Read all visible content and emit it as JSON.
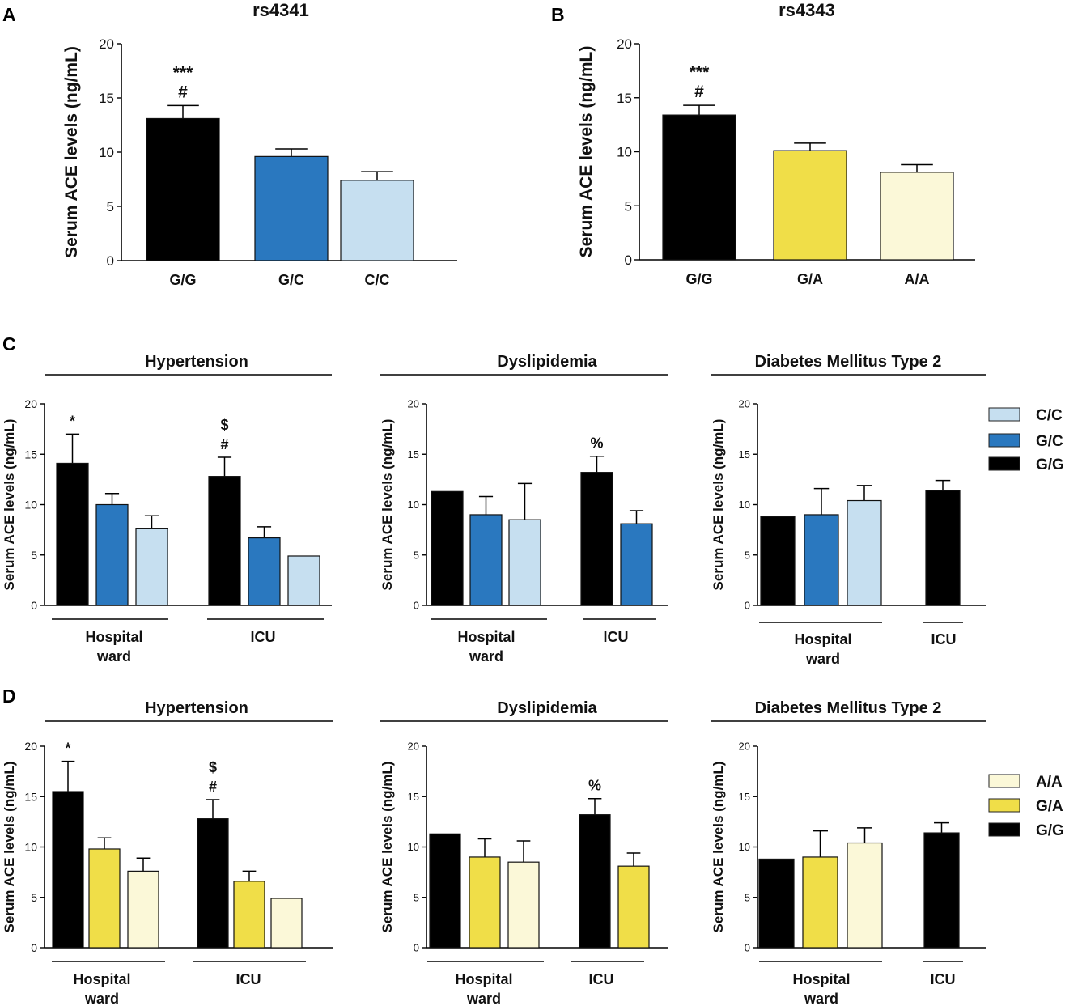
{
  "panel_letters": {
    "a": "A",
    "b": "B",
    "c": "C",
    "d": "D"
  },
  "condition_titles": {
    "hypertension": "Hypertension",
    "dyslipidemia": "Dyslipidemia",
    "diabetes": "Diabetes Mellitus Type 2"
  },
  "group_labels": {
    "hospital_line1": "Hospital",
    "hospital_line2": "ward",
    "icu": "ICU"
  },
  "colors": {
    "G/G": "#000000",
    "G/C": "#2a78bf",
    "C/C": "#c6dff0",
    "G/A": "#f0de48",
    "A/A": "#fbf8d8"
  },
  "legend_c": [
    "C/C",
    "G/C",
    "G/G"
  ],
  "legend_d": [
    "A/A",
    "G/A",
    "G/G"
  ],
  "chart_data": [
    {
      "id": "A",
      "type": "bar",
      "title": "rs4341",
      "ylabel": "Serum ACE levels (ng/mL)",
      "ylim": [
        0,
        20
      ],
      "yticks": [
        0,
        5,
        10,
        15,
        20
      ],
      "categories": [
        "G/G",
        "G/C",
        "C/C"
      ],
      "values": [
        13.1,
        9.6,
        7.4
      ],
      "errors": [
        1.2,
        0.7,
        0.8
      ],
      "annotations": [
        {
          "bar": 0,
          "lines": [
            "***",
            "#"
          ]
        }
      ]
    },
    {
      "id": "B",
      "type": "bar",
      "title": "rs4343",
      "ylabel": "Serum ACE levels (ng/mL)",
      "ylim": [
        0,
        20
      ],
      "yticks": [
        0,
        5,
        10,
        15,
        20
      ],
      "categories": [
        "G/G",
        "G/A",
        "A/A"
      ],
      "values": [
        13.4,
        10.1,
        8.1
      ],
      "errors": [
        0.9,
        0.7,
        0.7
      ],
      "annotations": [
        {
          "bar": 0,
          "lines": [
            "***",
            "#"
          ]
        }
      ]
    },
    {
      "id": "C1",
      "type": "bar",
      "title": "Hypertension",
      "ylabel": "Serum ACE levels (ng/mL)",
      "ylim": [
        0,
        20
      ],
      "yticks": [
        0,
        5,
        10,
        15,
        20
      ],
      "series": [
        {
          "group": "Hospital ward",
          "genotype": "G/G",
          "value": 14.1,
          "error": 2.9
        },
        {
          "group": "Hospital ward",
          "genotype": "G/C",
          "value": 10.0,
          "error": 1.1
        },
        {
          "group": "Hospital ward",
          "genotype": "C/C",
          "value": 7.6,
          "error": 1.3
        },
        {
          "group": "ICU",
          "genotype": "G/G",
          "value": 12.8,
          "error": 1.9
        },
        {
          "group": "ICU",
          "genotype": "G/C",
          "value": 6.7,
          "error": 1.1
        },
        {
          "group": "ICU",
          "genotype": "C/C",
          "value": 4.9,
          "error": 0
        }
      ],
      "annotations": [
        {
          "bar": 0,
          "lines": [
            "*"
          ]
        },
        {
          "bar": 3,
          "lines": [
            "$",
            "#"
          ]
        }
      ]
    },
    {
      "id": "C2",
      "type": "bar",
      "title": "Dyslipidemia",
      "ylabel": "Serum ACE levels (ng/mL)",
      "ylim": [
        0,
        20
      ],
      "yticks": [
        0,
        5,
        10,
        15,
        20
      ],
      "series": [
        {
          "group": "Hospital ward",
          "genotype": "G/G",
          "value": 11.3,
          "error": 0
        },
        {
          "group": "Hospital ward",
          "genotype": "G/C",
          "value": 9.0,
          "error": 1.8
        },
        {
          "group": "Hospital ward",
          "genotype": "C/C",
          "value": 8.5,
          "error": 3.6
        },
        {
          "group": "ICU",
          "genotype": "G/G",
          "value": 13.2,
          "error": 1.6
        },
        {
          "group": "ICU",
          "genotype": "G/C",
          "value": 8.1,
          "error": 1.3
        }
      ],
      "annotations": [
        {
          "bar": 3,
          "lines": [
            "%"
          ]
        }
      ]
    },
    {
      "id": "C3",
      "type": "bar",
      "title": "Diabetes Mellitus Type 2",
      "ylabel": "Serum ACE levels (ng/mL)",
      "ylim": [
        0,
        20
      ],
      "yticks": [
        0,
        5,
        10,
        15,
        20
      ],
      "series": [
        {
          "group": "Hospital ward",
          "genotype": "G/G",
          "value": 8.8,
          "error": 0
        },
        {
          "group": "Hospital ward",
          "genotype": "G/C",
          "value": 9.0,
          "error": 2.6
        },
        {
          "group": "Hospital ward",
          "genotype": "C/C",
          "value": 10.4,
          "error": 1.5
        },
        {
          "group": "ICU",
          "genotype": "G/G",
          "value": 11.4,
          "error": 1.0
        }
      ],
      "annotations": []
    },
    {
      "id": "D1",
      "type": "bar",
      "title": "Hypertension",
      "ylabel": "Serum ACE levels (ng/mL)",
      "ylim": [
        0,
        20
      ],
      "yticks": [
        0,
        5,
        10,
        15,
        20
      ],
      "series": [
        {
          "group": "Hospital ward",
          "genotype": "G/G",
          "value": 15.5,
          "error": 3.0
        },
        {
          "group": "Hospital ward",
          "genotype": "G/A",
          "value": 9.8,
          "error": 1.1
        },
        {
          "group": "Hospital ward",
          "genotype": "A/A",
          "value": 7.6,
          "error": 1.3
        },
        {
          "group": "ICU",
          "genotype": "G/G",
          "value": 12.8,
          "error": 1.9
        },
        {
          "group": "ICU",
          "genotype": "G/A",
          "value": 6.6,
          "error": 1.0
        },
        {
          "group": "ICU",
          "genotype": "A/A",
          "value": 4.9,
          "error": 0
        }
      ],
      "annotations": [
        {
          "bar": 0,
          "lines": [
            "*"
          ]
        },
        {
          "bar": 3,
          "lines": [
            "$",
            "#"
          ]
        }
      ]
    },
    {
      "id": "D2",
      "type": "bar",
      "title": "Dyslipidemia",
      "ylabel": "Serum ACE levels (ng/mL)",
      "ylim": [
        0,
        20
      ],
      "yticks": [
        0,
        5,
        10,
        15,
        20
      ],
      "series": [
        {
          "group": "Hospital ward",
          "genotype": "G/G",
          "value": 11.3,
          "error": 0
        },
        {
          "group": "Hospital ward",
          "genotype": "G/A",
          "value": 9.0,
          "error": 1.8
        },
        {
          "group": "Hospital ward",
          "genotype": "A/A",
          "value": 8.5,
          "error": 2.1
        },
        {
          "group": "ICU",
          "genotype": "G/G",
          "value": 13.2,
          "error": 1.6
        },
        {
          "group": "ICU",
          "genotype": "G/A",
          "value": 8.1,
          "error": 1.3
        }
      ],
      "annotations": [
        {
          "bar": 3,
          "lines": [
            "%"
          ]
        }
      ]
    },
    {
      "id": "D3",
      "type": "bar",
      "title": "Diabetes Mellitus Type 2",
      "ylabel": "Serum ACE levels (ng/mL)",
      "ylim": [
        0,
        20
      ],
      "yticks": [
        0,
        5,
        10,
        15,
        20
      ],
      "series": [
        {
          "group": "Hospital ward",
          "genotype": "G/G",
          "value": 8.8,
          "error": 0
        },
        {
          "group": "Hospital ward",
          "genotype": "G/A",
          "value": 9.0,
          "error": 2.6
        },
        {
          "group": "Hospital ward",
          "genotype": "A/A",
          "value": 10.4,
          "error": 1.5
        },
        {
          "group": "ICU",
          "genotype": "G/G",
          "value": 11.4,
          "error": 1.0
        }
      ],
      "annotations": []
    }
  ]
}
